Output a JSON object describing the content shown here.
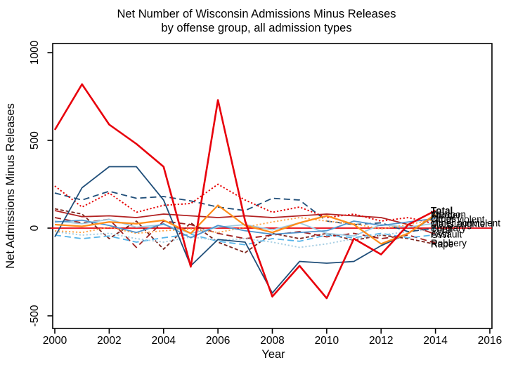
{
  "chart_data": {
    "type": "line",
    "title": "Net Number of Wisconsin Admissions Minus Releases",
    "subtitle": "by offense group, all admission types",
    "xlabel": "Year",
    "ylabel": "Net Admissions Minus Releases",
    "xlim": [
      2000,
      2016
    ],
    "ylim": [
      -500,
      1000
    ],
    "x_ticks": [
      2000,
      2002,
      2004,
      2006,
      2008,
      2010,
      2012,
      2014,
      2016
    ],
    "y_ticks": [
      -500,
      0,
      500,
      1000
    ],
    "grid": false,
    "frame_color": "#000000",
    "zero_line": {
      "value": 0,
      "color": "#e8000b"
    },
    "x": [
      2000,
      2001,
      2002,
      2003,
      2004,
      2005,
      2006,
      2007,
      2008,
      2009,
      2010,
      2011,
      2012,
      2013,
      2014
    ],
    "series": [
      {
        "name": "Total",
        "color": "#e8000b",
        "style": "solid",
        "width": 2.6,
        "bold": true,
        "values": [
          560,
          820,
          590,
          480,
          350,
          -220,
          730,
          40,
          -390,
          -215,
          -400,
          -60,
          -150,
          20,
          100
        ]
      },
      {
        "name": "Weapon",
        "color": "#ff8c1a",
        "style": "solid",
        "width": 2.3,
        "bold": false,
        "values": [
          20,
          10,
          35,
          25,
          45,
          -30,
          130,
          15,
          -25,
          30,
          70,
          20,
          -90,
          -30,
          78
        ]
      },
      {
        "name": "Murder",
        "color": "#1f4e79",
        "style": "solid",
        "width": 1.8,
        "bold": false,
        "values": [
          -50,
          230,
          350,
          350,
          160,
          -215,
          -65,
          -80,
          -370,
          -190,
          -200,
          -190,
          -100,
          -30,
          73
        ]
      },
      {
        "name": "Drugs",
        "color": "#4f94cd",
        "style": "solid",
        "width": 1.8,
        "bold": false,
        "values": [
          35,
          45,
          15,
          -25,
          25,
          -55,
          15,
          -15,
          -35,
          -25,
          -15,
          40,
          15,
          35,
          55
        ]
      },
      {
        "name": "Other violent",
        "color": "#ffa64d",
        "style": "dotted",
        "width": 1.9,
        "bold": false,
        "values": [
          -15,
          -25,
          5,
          -30,
          -15,
          -5,
          -25,
          5,
          35,
          60,
          40,
          25,
          -5,
          20,
          50
        ]
      },
      {
        "name": "Other nonviolent",
        "color": "#9ecae1",
        "style": "solid",
        "width": 1.8,
        "bold": false,
        "values": [
          40,
          25,
          50,
          5,
          20,
          -30,
          5,
          20,
          -10,
          30,
          -30,
          -45,
          20,
          5,
          28
        ]
      },
      {
        "name": "Manslaughter",
        "color": "#e60000",
        "style": "dotted",
        "width": 1.9,
        "bold": false,
        "values": [
          240,
          120,
          200,
          90,
          130,
          140,
          250,
          160,
          90,
          120,
          60,
          80,
          40,
          60,
          24
        ]
      },
      {
        "name": "Burglary",
        "color": "#1f4e79",
        "style": "dashed",
        "width": 1.8,
        "bold": false,
        "values": [
          200,
          160,
          210,
          170,
          180,
          155,
          120,
          100,
          170,
          160,
          40,
          20,
          30,
          -20,
          0
        ]
      },
      {
        "name": "Theft",
        "color": "#a6cee3",
        "style": "dotted",
        "width": 1.9,
        "bold": false,
        "values": [
          -20,
          -40,
          -30,
          -60,
          -80,
          -50,
          -70,
          -60,
          -80,
          -110,
          -90,
          -60,
          -40,
          -20,
          -5
        ]
      },
      {
        "name": "OWI",
        "color": "#56b4e9",
        "style": "dashed",
        "width": 1.8,
        "bold": false,
        "values": [
          -40,
          -60,
          -45,
          -80,
          -55,
          -35,
          -75,
          -95,
          -60,
          -75,
          -40,
          -55,
          -30,
          -55,
          -38
        ]
      },
      {
        "name": "Assault",
        "color": "#b22222",
        "style": "solid",
        "width": 1.8,
        "bold": false,
        "values": [
          100,
          65,
          70,
          60,
          80,
          70,
          60,
          70,
          60,
          70,
          80,
          70,
          60,
          20,
          -35
        ]
      },
      {
        "name": "Robbery",
        "color": "#a02020",
        "style": "dashed",
        "width": 1.8,
        "bold": false,
        "values": [
          60,
          30,
          50,
          -110,
          40,
          20,
          -30,
          -60,
          -40,
          -20,
          -50,
          -30,
          -60,
          -40,
          -85
        ]
      },
      {
        "name": "Rape",
        "color": "#7b241c",
        "style": "shortdash",
        "width": 1.8,
        "bold": false,
        "values": [
          110,
          80,
          -60,
          40,
          -120,
          30,
          -80,
          -140,
          -30,
          -60,
          -30,
          -70,
          -40,
          -60,
          -92
        ]
      }
    ]
  }
}
